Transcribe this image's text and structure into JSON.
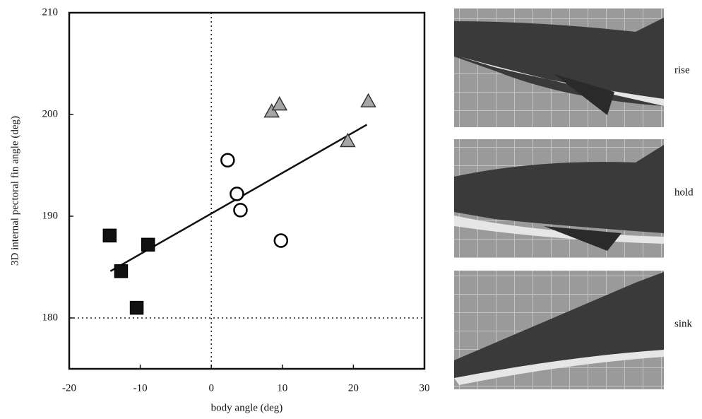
{
  "chart_data": {
    "type": "scatter",
    "xlabel": "body angle (deg)",
    "ylabel": "3D internal pectoral fin angle (deg)",
    "xlim": [
      -20,
      30
    ],
    "xticks": [
      -20,
      -10,
      0,
      10,
      20,
      30
    ],
    "ylim": [
      175,
      210
    ],
    "yticks": [
      180,
      190,
      200,
      210
    ],
    "reference_lines": {
      "x": 0,
      "y": 180
    },
    "fit_line": {
      "x": [
        -14.2,
        21.9
      ],
      "y": [
        184.6,
        199.0
      ]
    },
    "series": [
      {
        "marker": "square",
        "color": "#111111",
        "x": [
          -14.3,
          -12.7,
          -10.5,
          -8.9
        ],
        "y": [
          188.1,
          184.6,
          181.0,
          187.2
        ]
      },
      {
        "marker": "circle",
        "color": "#ffffff",
        "x": [
          2.3,
          3.6,
          4.1,
          9.8
        ],
        "y": [
          195.5,
          192.2,
          190.6,
          187.6
        ]
      },
      {
        "marker": "triangle",
        "color": "#a6a6a6",
        "x": [
          8.5,
          9.6,
          19.2,
          22.1
        ],
        "y": [
          200.3,
          201.0,
          197.4,
          201.3
        ]
      }
    ]
  },
  "panels": [
    {
      "label": "rise"
    },
    {
      "label": "hold"
    },
    {
      "label": "sink"
    }
  ]
}
